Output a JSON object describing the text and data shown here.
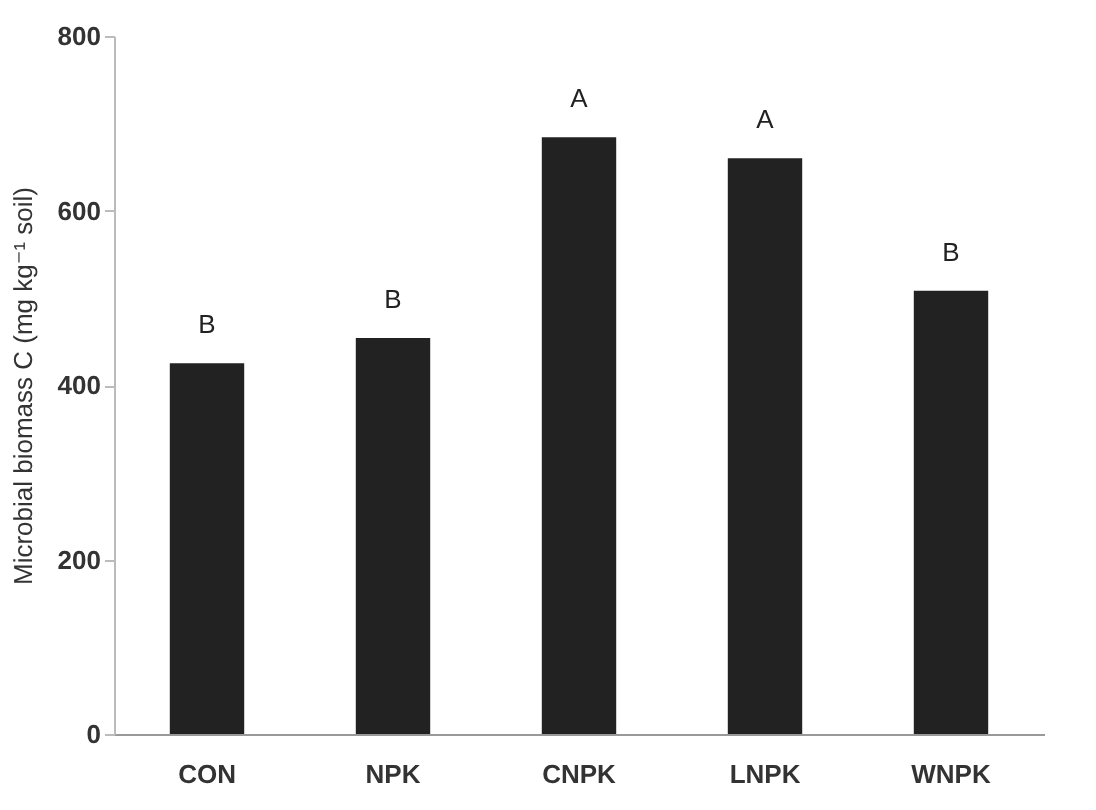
{
  "chart_data": {
    "type": "bar",
    "ylabel": "Microbial biomass C (mg kg⁻¹ soil)",
    "categories": [
      "CON",
      "NPK",
      "CNPK",
      "LNPK",
      "WNPK"
    ],
    "values": [
      425,
      454,
      684,
      660,
      508
    ],
    "color": "#222222",
    "ylim": [
      0,
      800
    ],
    "yticks": [
      0,
      200,
      400,
      600,
      800
    ],
    "grid": false,
    "annotations": [
      {
        "text": "B",
        "x": "CON",
        "y": 425
      },
      {
        "text": "B",
        "x": "NPK",
        "y": 454
      },
      {
        "text": "A",
        "x": "CNPK",
        "y": 684
      },
      {
        "text": "A",
        "x": "LNPK",
        "y": 660
      },
      {
        "text": "B",
        "x": "WNPK",
        "y": 508
      }
    ]
  }
}
